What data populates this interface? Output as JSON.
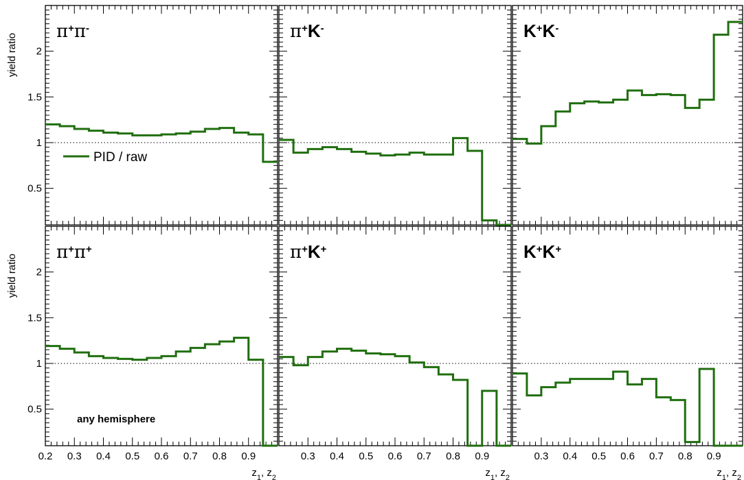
{
  "chart_data": {
    "type": "line",
    "step": true,
    "xlim": [
      0.2,
      1.0
    ],
    "ylim": [
      0.1,
      2.5
    ],
    "yticks": [
      0.5,
      1,
      1.5,
      2
    ],
    "xticks": [
      0.2,
      0.3,
      0.4,
      0.5,
      0.6,
      0.7,
      0.8,
      0.9
    ],
    "ylabel": "yield ratio",
    "xlabel": "z",
    "xlabel_sub1": "1",
    "xlabel_sep": ", z",
    "xlabel_sub2": "2",
    "reference_line": 1.0,
    "legend": {
      "label": "PID / raw",
      "color": "#1f6e0e",
      "position": "left"
    },
    "note": "any hemisphere",
    "bin_edges": [
      0.2,
      0.25,
      0.3,
      0.35,
      0.4,
      0.45,
      0.5,
      0.55,
      0.6,
      0.65,
      0.7,
      0.75,
      0.8,
      0.85,
      0.9,
      0.95,
      1.0
    ],
    "panels": [
      {
        "id": "pipi-unlike",
        "row": 0,
        "col": 0,
        "label_parts": [
          [
            "π",
            "+",
            true
          ],
          [
            "π",
            "-",
            true
          ]
        ],
        "values": [
          1.2,
          1.18,
          1.15,
          1.13,
          1.11,
          1.1,
          1.08,
          1.08,
          1.09,
          1.1,
          1.12,
          1.15,
          1.16,
          1.11,
          1.09,
          0.79
        ]
      },
      {
        "id": "piK-unlike",
        "row": 0,
        "col": 1,
        "label_parts": [
          [
            "π",
            "+",
            true
          ],
          [
            "K",
            "-",
            false
          ]
        ],
        "values": [
          1.03,
          0.89,
          0.93,
          0.95,
          0.93,
          0.9,
          0.88,
          0.86,
          0.87,
          0.89,
          0.87,
          0.87,
          1.05,
          0.91,
          0.15,
          0.1
        ]
      },
      {
        "id": "KK-unlike",
        "row": 0,
        "col": 2,
        "label_parts": [
          [
            "K",
            "+",
            false
          ],
          [
            "K",
            "-",
            false
          ]
        ],
        "values": [
          1.04,
          0.99,
          1.18,
          1.34,
          1.43,
          1.45,
          1.44,
          1.47,
          1.57,
          1.52,
          1.53,
          1.52,
          1.38,
          1.47,
          2.18,
          2.32
        ]
      },
      {
        "id": "pipi-like",
        "row": 1,
        "col": 0,
        "label_parts": [
          [
            "π",
            "+",
            true
          ],
          [
            "π",
            "+",
            true
          ]
        ],
        "values": [
          1.19,
          1.16,
          1.12,
          1.08,
          1.06,
          1.05,
          1.04,
          1.06,
          1.08,
          1.13,
          1.17,
          1.21,
          1.24,
          1.28,
          1.04,
          0.1
        ]
      },
      {
        "id": "piK-like",
        "row": 1,
        "col": 1,
        "label_parts": [
          [
            "π",
            "+",
            true
          ],
          [
            "K",
            "+",
            false
          ]
        ],
        "values": [
          1.07,
          0.98,
          1.07,
          1.13,
          1.16,
          1.14,
          1.11,
          1.1,
          1.08,
          1.01,
          0.96,
          0.88,
          0.82,
          0.1,
          0.7,
          0.1
        ]
      },
      {
        "id": "KK-like",
        "row": 1,
        "col": 2,
        "label_parts": [
          [
            "K",
            "+",
            false
          ],
          [
            "K",
            "+",
            false
          ]
        ],
        "values": [
          0.89,
          0.65,
          0.74,
          0.79,
          0.83,
          0.83,
          0.83,
          0.91,
          0.77,
          0.83,
          0.63,
          0.6,
          0.14,
          0.94,
          0.1,
          0.1
        ]
      }
    ]
  }
}
